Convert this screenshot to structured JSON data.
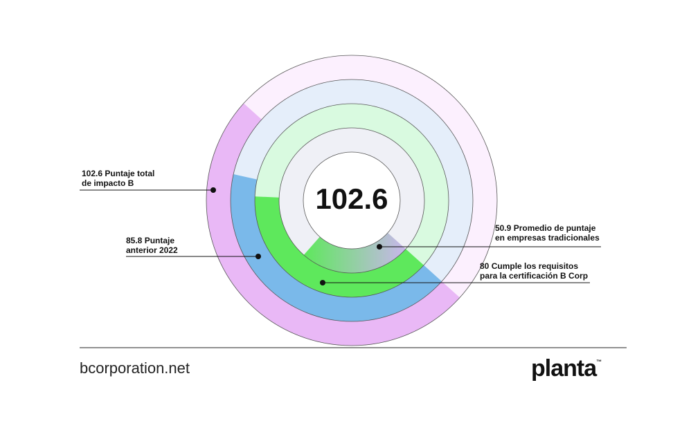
{
  "chart_data": {
    "type": "radial_bar",
    "series": [
      {
        "name": "Puntaje total\nde impacto B",
        "color": "#e9b8f6",
        "values": [
          102.6
        ]
      },
      {
        "name": "Puntaje\nanterior 2022",
        "color": "#7ab9ea",
        "values": [
          85.8
        ]
      },
      {
        "name": "Cumple los requisitos\npara la certificación B Corp",
        "color": "#5ee85c",
        "values": [
          80
        ]
      },
      {
        "name": "Promedio de puntaje\nen empresas tradicionales",
        "color": "#c9b6ec",
        "values": [
          50.9
        ]
      }
    ]
  },
  "footer": {
    "source": "bcorporation.net",
    "brand": "planta",
    "brand_mark": "™"
  }
}
